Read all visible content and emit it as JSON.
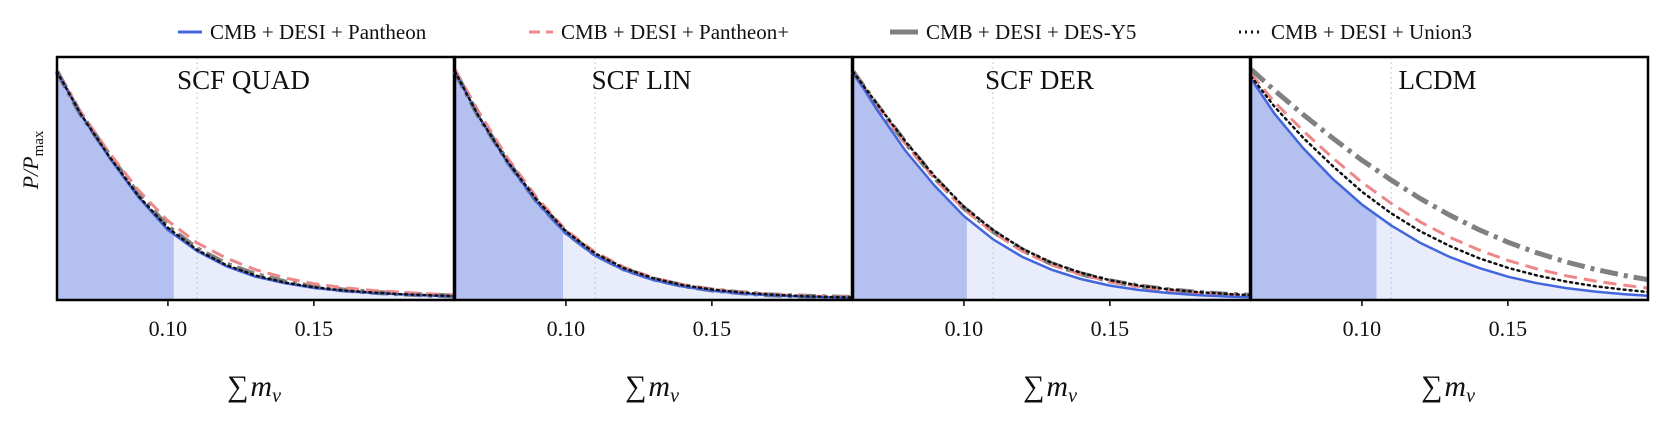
{
  "chart_data": {
    "type": "line",
    "ylabel": "P/P_max",
    "ylabel_main": "P/P",
    "ylabel_sub": "max",
    "xlabel_sigma": "∑",
    "xlabel_m": "m",
    "xlabel_nu": "ν",
    "xlim": [
      0.062,
      0.198
    ],
    "ylim": [
      0,
      1.0
    ],
    "xticks": [
      0.1,
      0.15
    ],
    "xtick_labels": [
      "0.10",
      "0.15"
    ],
    "reference_line_x": 0.11,
    "colors": {
      "pantheon": "#4466dd",
      "pantheon_plus": "#ee8888",
      "des_y5": "#808080",
      "union3": "#111111",
      "fill_dark": "#b4c1f0",
      "fill_light": "#e8ecfb"
    },
    "legend": [
      {
        "key": "pantheon",
        "label": "CMB + DESI + Pantheon",
        "style": "solid"
      },
      {
        "key": "pantheon_plus",
        "label": "CMB + DESI + Pantheon+",
        "style": "dashed"
      },
      {
        "key": "des_y5",
        "label": "CMB + DESI + DES-Y5",
        "style": "dashdot"
      },
      {
        "key": "union3",
        "label": "CMB + DESI + Union3",
        "style": "dotted"
      }
    ],
    "x": [
      0.062,
      0.07,
      0.08,
      0.09,
      0.1,
      0.11,
      0.12,
      0.13,
      0.14,
      0.15,
      0.16,
      0.17,
      0.18,
      0.19,
      0.198
    ],
    "panels": [
      {
        "title": "SCF QUAD",
        "shade_95_upper": 0.102,
        "series": [
          {
            "key": "pantheon",
            "values": [
              0.98,
              0.8,
              0.61,
              0.44,
              0.3,
              0.21,
              0.145,
              0.1,
              0.072,
              0.052,
              0.039,
              0.03,
              0.024,
              0.019,
              0.016
            ]
          },
          {
            "key": "pantheon_plus",
            "values": [
              0.98,
              0.81,
              0.63,
              0.47,
              0.34,
              0.245,
              0.18,
              0.13,
              0.095,
              0.07,
              0.053,
              0.041,
              0.033,
              0.026,
              0.021
            ]
          },
          {
            "key": "des_y5",
            "values": [
              0.98,
              0.8,
              0.62,
              0.45,
              0.315,
              0.22,
              0.155,
              0.11,
              0.078,
              0.057,
              0.043,
              0.033,
              0.026,
              0.021,
              0.017
            ]
          },
          {
            "key": "union3",
            "values": [
              0.98,
              0.8,
              0.615,
              0.445,
              0.31,
              0.215,
              0.15,
              0.105,
              0.075,
              0.055,
              0.041,
              0.032,
              0.025,
              0.02,
              0.017
            ]
          }
        ]
      },
      {
        "title": "SCF LIN",
        "shade_95_upper": 0.099,
        "series": [
          {
            "key": "pantheon",
            "values": [
              0.98,
              0.79,
              0.59,
              0.42,
              0.285,
              0.19,
              0.128,
              0.086,
              0.058,
              0.04,
              0.028,
              0.02,
              0.015,
              0.011,
              0.009
            ]
          },
          {
            "key": "pantheon_plus",
            "values": [
              0.99,
              0.81,
              0.61,
              0.44,
              0.3,
              0.205,
              0.14,
              0.095,
              0.066,
              0.046,
              0.033,
              0.024,
              0.018,
              0.014,
              0.012
            ]
          },
          {
            "key": "des_y5",
            "values": [
              0.98,
              0.79,
              0.595,
              0.425,
              0.29,
              0.195,
              0.132,
              0.09,
              0.062,
              0.043,
              0.031,
              0.022,
              0.017,
              0.013,
              0.011
            ]
          },
          {
            "key": "union3",
            "values": [
              0.98,
              0.79,
              0.595,
              0.43,
              0.295,
              0.2,
              0.136,
              0.093,
              0.064,
              0.045,
              0.032,
              0.023,
              0.017,
              0.013,
              0.011
            ]
          }
        ]
      },
      {
        "title": "SCF DER",
        "shade_95_upper": 0.101,
        "series": [
          {
            "key": "pantheon",
            "values": [
              0.98,
              0.82,
              0.64,
              0.49,
              0.36,
              0.26,
              0.185,
              0.13,
              0.09,
              0.062,
              0.043,
              0.03,
              0.021,
              0.015,
              0.012
            ]
          },
          {
            "key": "pantheon_plus",
            "values": [
              0.98,
              0.84,
              0.67,
              0.52,
              0.39,
              0.29,
              0.21,
              0.152,
              0.11,
              0.079,
              0.057,
              0.042,
              0.031,
              0.023,
              0.018
            ]
          },
          {
            "key": "des_y5",
            "values": [
              0.98,
              0.84,
              0.675,
              0.525,
              0.395,
              0.295,
              0.215,
              0.156,
              0.113,
              0.082,
              0.06,
              0.044,
              0.033,
              0.025,
              0.02
            ]
          },
          {
            "key": "union3",
            "values": [
              0.98,
              0.845,
              0.68,
              0.53,
              0.4,
              0.3,
              0.22,
              0.16,
              0.117,
              0.085,
              0.062,
              0.046,
              0.034,
              0.026,
              0.021
            ]
          }
        ]
      },
      {
        "title": "LCDM",
        "shade_95_upper": 0.105,
        "series": [
          {
            "key": "pantheon",
            "values": [
              0.95,
              0.8,
              0.65,
              0.52,
              0.41,
              0.32,
              0.245,
              0.185,
              0.138,
              0.1,
              0.072,
              0.051,
              0.036,
              0.025,
              0.018
            ]
          },
          {
            "key": "pantheon_plus",
            "values": [
              0.97,
              0.85,
              0.725,
              0.61,
              0.505,
              0.415,
              0.335,
              0.27,
              0.215,
              0.17,
              0.133,
              0.104,
              0.081,
              0.063,
              0.051
            ]
          },
          {
            "key": "des_y5",
            "values": [
              0.99,
              0.9,
              0.795,
              0.695,
              0.6,
              0.515,
              0.435,
              0.365,
              0.302,
              0.248,
              0.202,
              0.163,
              0.131,
              0.105,
              0.087
            ]
          },
          {
            "key": "union3",
            "values": [
              0.96,
              0.83,
              0.695,
              0.575,
              0.465,
              0.372,
              0.295,
              0.232,
              0.18,
              0.138,
              0.105,
              0.079,
              0.059,
              0.044,
              0.034
            ]
          }
        ]
      }
    ]
  }
}
